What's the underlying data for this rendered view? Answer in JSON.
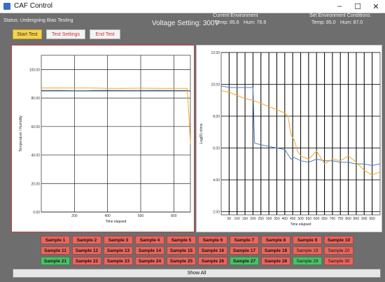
{
  "window": {
    "title": "CAF Control",
    "minimize_glyph": "–",
    "maximize_glyph": "☐",
    "close_glyph": "✕"
  },
  "status": {
    "text": "Status:  Undergoing Bias Testing"
  },
  "voltage": {
    "text": "Voltage Setting: 300V"
  },
  "current_env": {
    "title": "Current Environment",
    "temp": "Temp: 85.6",
    "hum": "Hum: 76.9"
  },
  "set_env": {
    "title": "Set Environment Conditions",
    "temp": "Temp: 85.0",
    "hum": "Hum: 87.0"
  },
  "toolbar": {
    "start": "Start Test",
    "settings": "Test Settings",
    "end": "End Test"
  },
  "colors": {
    "orange": "#f5a623",
    "blue": "#4a7fc1",
    "sample_red": "#e8665c",
    "sample_green": "#4fbf65"
  },
  "chart_data": [
    {
      "type": "line",
      "xlabel": "Time elapsed",
      "ylabel": "Temperature / Humidity",
      "xlim": [
        0,
        900
      ],
      "ylim": [
        0,
        110
      ],
      "xticks": [
        "200",
        "400",
        "600",
        "800"
      ],
      "xtick_values": [
        200,
        400,
        600,
        800
      ],
      "yticks": [
        "0.00",
        "20.00",
        "40.00",
        "60.00",
        "80.00",
        "100.00"
      ],
      "ytick_values": [
        0,
        20,
        40,
        60,
        80,
        100
      ],
      "hlines": [
        85
      ],
      "series": [
        {
          "color": "#f5a623",
          "x": [
            0,
            100,
            200,
            300,
            400,
            500,
            600,
            700,
            800,
            880,
            890,
            900
          ],
          "y": [
            87,
            87,
            87,
            87,
            86.8,
            86.8,
            86.9,
            86.8,
            86.8,
            86.8,
            70,
            48
          ]
        },
        {
          "color": "#4a7fc1",
          "x": [
            0,
            100,
            200,
            300,
            400,
            500,
            600,
            700,
            800,
            880
          ],
          "y": [
            85.3,
            85.4,
            85.2,
            85.3,
            85.4,
            85.3,
            85.3,
            85.4,
            85.3,
            85.3
          ]
        }
      ]
    },
    {
      "type": "line",
      "xlabel": "Time elapsed",
      "ylabel": "Log(R) ohms",
      "xlim": [
        0,
        1000
      ],
      "ylim": [
        1.8,
        12.0
      ],
      "xticks": [
        "50",
        "100",
        "150",
        "200",
        "250",
        "300",
        "350",
        "400",
        "450",
        "500",
        "550",
        "600",
        "650",
        "700",
        "750",
        "800",
        "850",
        "900",
        "950"
      ],
      "xtick_values": [
        50,
        100,
        150,
        200,
        250,
        300,
        350,
        400,
        450,
        500,
        550,
        600,
        650,
        700,
        750,
        800,
        850,
        900,
        950
      ],
      "yticks": [
        "2.00",
        "4.00",
        "6.00",
        "8.00",
        "10.00",
        "12.00"
      ],
      "ytick_values": [
        2,
        4,
        6,
        8,
        10,
        12
      ],
      "series": [
        {
          "color": "#4a7fc1",
          "x": [
            0,
            50,
            100,
            150,
            200,
            210,
            250,
            300,
            350,
            400,
            420,
            440,
            460,
            500,
            550,
            600,
            650,
            700,
            750,
            800,
            850,
            900,
            950,
            1000
          ],
          "y": [
            9.9,
            9.8,
            9.8,
            9.8,
            9.8,
            6.3,
            6.2,
            6.1,
            6.0,
            5.9,
            5.6,
            5.3,
            5.4,
            5.2,
            5.1,
            5.3,
            5.2,
            5.2,
            5.1,
            5.1,
            5.0,
            5.0,
            4.9,
            5.0
          ]
        },
        {
          "color": "#f5a623",
          "x": [
            0,
            50,
            100,
            150,
            200,
            250,
            300,
            350,
            400,
            420,
            440,
            460,
            480,
            500,
            550,
            600,
            650,
            700,
            750,
            800,
            850,
            900,
            950,
            1000
          ],
          "y": [
            9.6,
            9.5,
            9.3,
            9.1,
            9.0,
            8.8,
            8.6,
            8.4,
            8.2,
            8.0,
            6.8,
            6.5,
            5.8,
            5.5,
            5.3,
            5.8,
            5.0,
            5.3,
            5.2,
            5.5,
            5.1,
            4.6,
            4.3,
            4.5
          ]
        }
      ]
    }
  ],
  "samples": [
    {
      "label": "Sample 1",
      "color": "red"
    },
    {
      "label": "Sample 2",
      "color": "red"
    },
    {
      "label": "Sample 3",
      "color": "red"
    },
    {
      "label": "Sample 4",
      "color": "red"
    },
    {
      "label": "Sample 5",
      "color": "red"
    },
    {
      "label": "Sample 6",
      "color": "red"
    },
    {
      "label": "Sample 7",
      "color": "red"
    },
    {
      "label": "Sample 8",
      "color": "red"
    },
    {
      "label": "Sample 9",
      "color": "red"
    },
    {
      "label": "Sample 10",
      "color": "red"
    },
    {
      "label": "Sample 11",
      "color": "red"
    },
    {
      "label": "Sample 12",
      "color": "red"
    },
    {
      "label": "Sample 13",
      "color": "red"
    },
    {
      "label": "Sample 14",
      "color": "red"
    },
    {
      "label": "Sample 15",
      "color": "red"
    },
    {
      "label": "Sample 16",
      "color": "red"
    },
    {
      "label": "Sample 17",
      "color": "red"
    },
    {
      "label": "Sample 18",
      "color": "red"
    },
    {
      "label": "Sample 19",
      "color": "red",
      "light": true
    },
    {
      "label": "Sample 20",
      "color": "red",
      "light": true
    },
    {
      "label": "Sample 21",
      "color": "green"
    },
    {
      "label": "Sample 22",
      "color": "red"
    },
    {
      "label": "Sample 23",
      "color": "red"
    },
    {
      "label": "Sample 24",
      "color": "red"
    },
    {
      "label": "Sample 25",
      "color": "red"
    },
    {
      "label": "Sample 26",
      "color": "red"
    },
    {
      "label": "Sample 27",
      "color": "green"
    },
    {
      "label": "Sample 28",
      "color": "red"
    },
    {
      "label": "Sample 29",
      "color": "green",
      "light": true
    },
    {
      "label": "Sample 30",
      "color": "red",
      "light": true
    }
  ],
  "show_all": "Show All"
}
